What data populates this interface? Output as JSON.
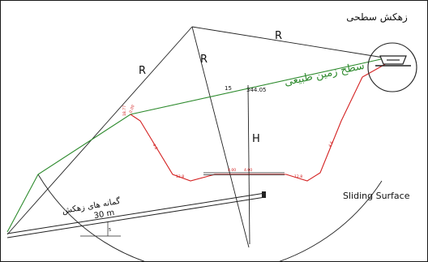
{
  "diagram": {
    "labels": {
      "r_left": "R",
      "r_mid": "R",
      "r_top": "R",
      "h_label": "H",
      "surface_title": "زهکش سطحی",
      "ground_label": "سطح زمین طبیعی",
      "drain_label": "گمانه های زهکش",
      "drain_length": "30 m",
      "sliding_surface": "Sliding Surface",
      "angle_15": "15",
      "elev_top": "344.05",
      "elev_left": "18.77",
      "slope_left": "0.00",
      "slope_left_seg": "4.6",
      "slope_right_seg": "4.6",
      "bench_left": "12.8",
      "bench_right": "12.8",
      "base_left": "4.00",
      "base_right": "4.00",
      "drain_angle": "5"
    },
    "colors": {
      "ground_line": "#2e8b2e",
      "excavation": "#d42222",
      "structure": "#222222",
      "text_green": "#2e8b2e",
      "text_red": "#d42222"
    }
  }
}
